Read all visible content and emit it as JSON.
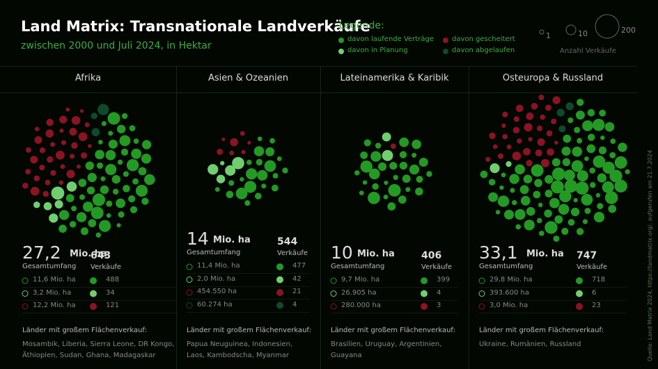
{
  "header": {
    "title": "Land Matrix: Transnationale Landverkäufe",
    "subtitle": "zwischen 2000 und Juli 2024, in Hektar"
  },
  "legend": {
    "title": "Legende:",
    "items": [
      "davon laufende Verträge",
      "davon gescheitert",
      "davon in Planung",
      "davon abgelaufen"
    ],
    "sizes": [
      1,
      10,
      200
    ],
    "size_caption": "Anzahl Verkäufe"
  },
  "regions": [
    {
      "name": "Afrika",
      "total": "27,2",
      "unit": "Mio. ha",
      "total_label": "Gesamtumfang",
      "deals": 643,
      "deals_label": "Verkäufe",
      "rows": [
        {
          "area": "11,6 Mio. ha",
          "count": 488
        },
        {
          "area": "3,2 Mio. ha",
          "count": 34
        },
        {
          "area": "12,2 Mio. ha",
          "count": 121
        }
      ],
      "countries_label": "Länder mit großem Flächenverkauf:",
      "countries": "Mosambik, Liberia, Sierra Leone, DR Kongo, Äthiopien, Sudan, Ghana, Madagaskar"
    },
    {
      "name": "Asien & Ozeanien",
      "total": "14",
      "unit": "Mio. ha",
      "total_label": "Gesamtumfang",
      "deals": 544,
      "deals_label": "Verkäufe",
      "rows": [
        {
          "area": "11,4 Mio. ha",
          "count": 477
        },
        {
          "area": "2,0 Mio. ha",
          "count": 42
        },
        {
          "area": "454.550 ha",
          "count": 21
        },
        {
          "area": "60.274 ha",
          "count": 4
        }
      ],
      "countries_label": "Länder mit großem Flächenverkauf:",
      "countries": "Papua Neuguinea, Indonesien, Laos, Kambodscha, Myanmar"
    },
    {
      "name": "Lateinamerika & Karibik",
      "total": "10",
      "unit": "Mio. ha",
      "total_label": "Gesamtumfang",
      "deals": 406,
      "deals_label": "Verkäufe",
      "rows": [
        {
          "area": "9,7 Mio. ha",
          "count": 399
        },
        {
          "area": "26.905 ha",
          "count": 4
        },
        {
          "area": "280.000 ha",
          "count": 3
        }
      ],
      "countries_label": "Länder mit großem Flächenverkauf:",
      "countries": "Brasilien, Uruguay, Argentinien, Guayana"
    },
    {
      "name": "Osteuropa & Russland",
      "total": "33,1",
      "unit": "Mio. ha",
      "total_label": "Gesamtumfang",
      "deals": 747,
      "deals_label": "Verkäufe",
      "rows": [
        {
          "area": "29,8 Mio. ha",
          "count": 718
        },
        {
          "area": "393.600 ha",
          "count": 6
        },
        {
          "area": "3,0 Mio. ha",
          "count": 23
        }
      ],
      "countries_label": "Länder mit großem Flächenverkauf:",
      "countries": "Ukraine, Rumänien, Russland"
    }
  ],
  "source": "Quelle: Land Matrix 2024, https://landmatrix.org/, aufgerufen am 21.7.2024"
}
